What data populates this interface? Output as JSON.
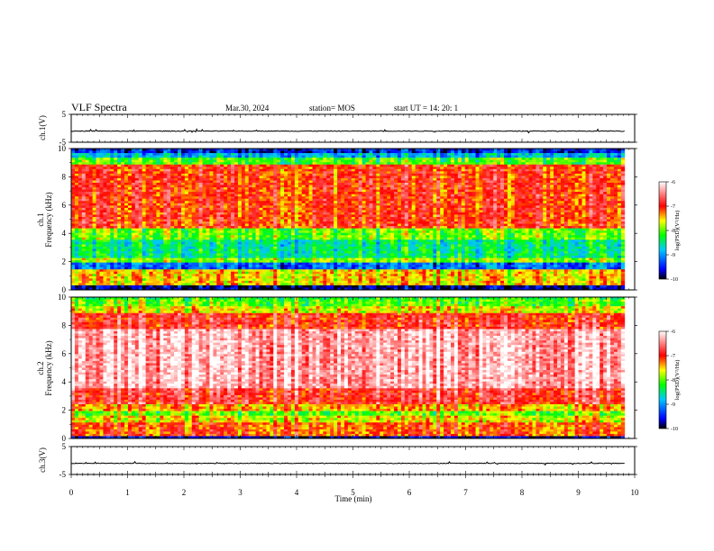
{
  "header": {
    "title": "VLF Spectra",
    "date": "Mar.30, 2024",
    "station": "station= MOS",
    "start_ut": "start UT =   14: 20: 1"
  },
  "chart_data": [
    {
      "type": "line",
      "panel": "ch1-waveform",
      "ylabel": "ch.1(V)",
      "ylim": [
        -5,
        5
      ],
      "yticks": [
        5,
        -5
      ],
      "level": -1
    },
    {
      "type": "heatmap",
      "panel": "ch1-spectrogram",
      "ylabel": "ch.1",
      "ylabel2": "Frequency (kHz)",
      "ylim": [
        0,
        10
      ],
      "yticks": [
        0,
        2,
        4,
        6,
        8,
        10
      ],
      "colorbar": {
        "label": "log(PSD)(V²/Hz)",
        "ticks": [
          -6,
          -7,
          -8,
          -9,
          -10
        ],
        "range": [
          -10,
          -6
        ]
      }
    },
    {
      "type": "heatmap",
      "panel": "ch2-spectrogram",
      "ylabel": "ch.2",
      "ylabel2": "Frequency (kHz)",
      "ylim": [
        0,
        10
      ],
      "yticks": [
        0,
        2,
        4,
        6,
        8,
        10
      ],
      "colorbar": {
        "label": "log(PSD)(V²/Hz)",
        "ticks": [
          -6,
          -7,
          -8,
          -9,
          -10
        ],
        "range": [
          -10,
          -6
        ]
      }
    },
    {
      "type": "line",
      "panel": "ch3-waveform",
      "ylabel": "ch.3(V)",
      "ylim": [
        -5,
        5
      ],
      "yticks": [
        5,
        -5
      ],
      "level": -1
    }
  ],
  "xaxis": {
    "label": "Time (min)",
    "ticks": [
      0,
      1,
      2,
      3,
      4,
      5,
      6,
      7,
      8,
      9,
      10
    ],
    "xlim": [
      0,
      10
    ],
    "data_end": 9.82
  },
  "colors": {
    "scale": [
      "#000000",
      "#0000ff",
      "#00c8ff",
      "#00ff00",
      "#ffff00",
      "#ff0000",
      "#ffffff"
    ]
  }
}
